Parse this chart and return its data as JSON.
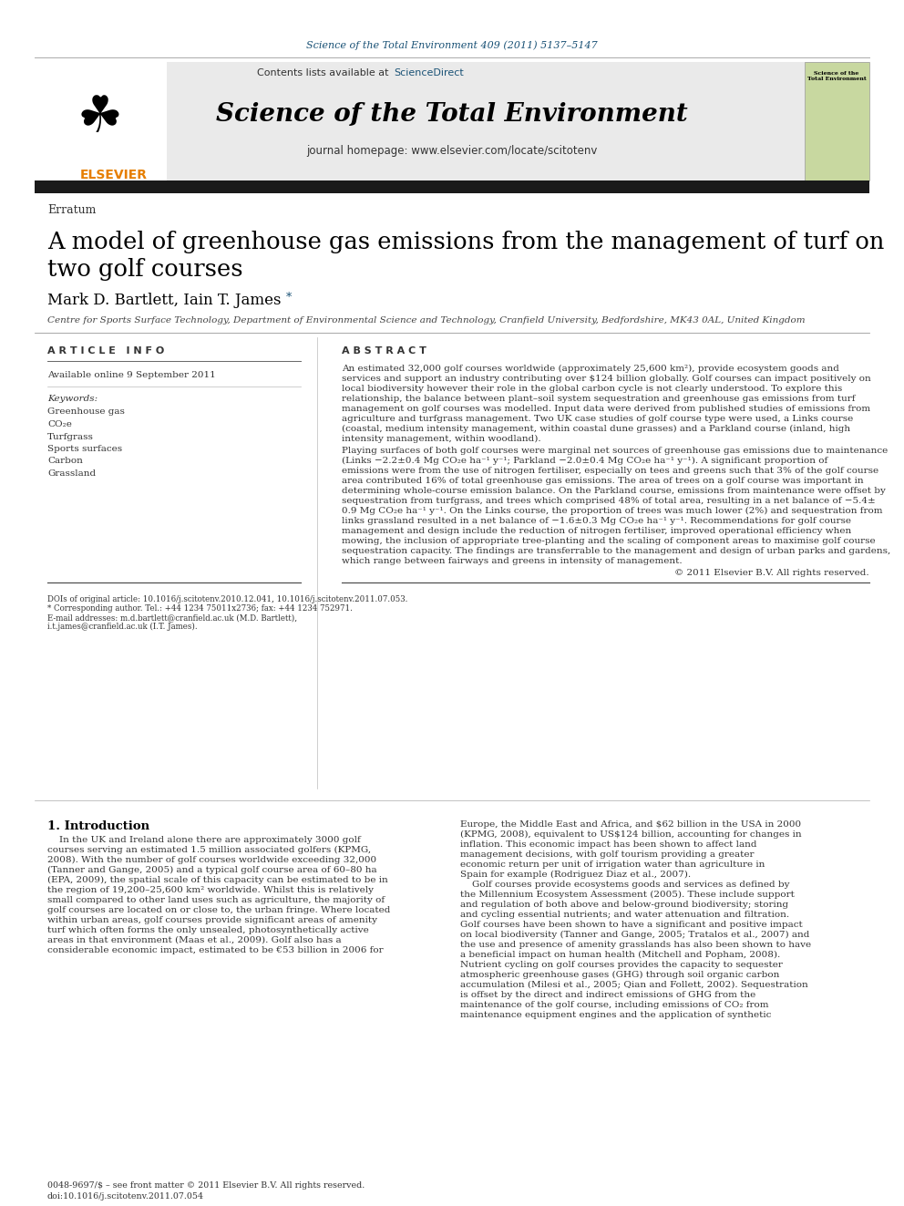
{
  "journal_ref": "Science of the Total Environment 409 (2011) 5137–5147",
  "contents_text": "Contents lists available at",
  "sciencedirect_text": "ScienceDirect",
  "journal_title": "Science of the Total Environment",
  "journal_homepage": "journal homepage: www.elsevier.com/locate/scitotenv",
  "section_label": "Erratum",
  "paper_title_line1": "A model of greenhouse gas emissions from the management of turf on",
  "paper_title_line2": "two golf courses",
  "authors": "Mark D. Bartlett, Iain T. James",
  "affiliation": "Centre for Sports Surface Technology, Department of Environmental Science and Technology, Cranfield University, Bedfordshire, MK43 0AL, United Kingdom",
  "article_info_header": "A R T I C L E   I N F O",
  "abstract_header": "A B S T R A C T",
  "available_online": "Available online 9 September 2011",
  "keywords_header": "Keywords:",
  "keywords": [
    "Greenhouse gas",
    "CO₂e",
    "Turfgrass",
    "Sports surfaces",
    "Carbon",
    "Grassland"
  ],
  "para1_lines": [
    "An estimated 32,000 golf courses worldwide (approximately 25,600 km²), provide ecosystem goods and",
    "services and support an industry contributing over $124 billion globally. Golf courses can impact positively on",
    "local biodiversity however their role in the global carbon cycle is not clearly understood. To explore this",
    "relationship, the balance between plant–soil system sequestration and greenhouse gas emissions from turf",
    "management on golf courses was modelled. Input data were derived from published studies of emissions from",
    "agriculture and turfgrass management. Two UK case studies of golf course type were used, a Links course",
    "(coastal, medium intensity management, within coastal dune grasses) and a Parkland course (inland, high",
    "intensity management, within woodland)."
  ],
  "para2_lines": [
    "Playing surfaces of both golf courses were marginal net sources of greenhouse gas emissions due to maintenance",
    "(Links −2.2±0.4 Mg CO₂e ha⁻¹ y⁻¹; Parkland −2.0±0.4 Mg CO₂e ha⁻¹ y⁻¹). A significant proportion of",
    "emissions were from the use of nitrogen fertiliser, especially on tees and greens such that 3% of the golf course",
    "area contributed 16% of total greenhouse gas emissions. The area of trees on a golf course was important in",
    "determining whole-course emission balance. On the Parkland course, emissions from maintenance were offset by",
    "sequestration from turfgrass, and trees which comprised 48% of total area, resulting in a net balance of −5.4±",
    "0.9 Mg CO₂e ha⁻¹ y⁻¹. On the Links course, the proportion of trees was much lower (2%) and sequestration from",
    "links grassland resulted in a net balance of −1.6±0.3 Mg CO₂e ha⁻¹ y⁻¹. Recommendations for golf course",
    "management and design include the reduction of nitrogen fertiliser, improved operational efficiency when",
    "mowing, the inclusion of appropriate tree-planting and the scaling of component areas to maximise golf course",
    "sequestration capacity. The findings are transferrable to the management and design of urban parks and gardens,",
    "which range between fairways and greens in intensity of management."
  ],
  "copyright": "© 2011 Elsevier B.V. All rights reserved.",
  "intro_header": "1. Introduction",
  "intro1_lines": [
    "    In the UK and Ireland alone there are approximately 3000 golf",
    "courses serving an estimated 1.5 million associated golfers (KPMG,",
    "2008). With the number of golf courses worldwide exceeding 32,000",
    "(Tanner and Gange, 2005) and a typical golf course area of 60–80 ha",
    "(EPA, 2009), the spatial scale of this capacity can be estimated to be in",
    "the region of 19,200–25,600 km² worldwide. Whilst this is relatively",
    "small compared to other land uses such as agriculture, the majority of",
    "golf courses are located on or close to, the urban fringe. Where located",
    "within urban areas, golf courses provide significant areas of amenity",
    "turf which often forms the only unsealed, photosynthetically active",
    "areas in that environment (Maas et al., 2009). Golf also has a",
    "considerable economic impact, estimated to be €53 billion in 2006 for"
  ],
  "intro2_lines": [
    "Europe, the Middle East and Africa, and $62 billion in the USA in 2000",
    "(KPMG, 2008), equivalent to US$124 billion, accounting for changes in",
    "inflation. This economic impact has been shown to affect land",
    "management decisions, with golf tourism providing a greater",
    "economic return per unit of irrigation water than agriculture in",
    "Spain for example (Rodriguez Diaz et al., 2007).",
    "    Golf courses provide ecosystems goods and services as defined by",
    "the Millennium Ecosystem Assessment (2005). These include support",
    "and regulation of both above and below-ground biodiversity; storing",
    "and cycling essential nutrients; and water attenuation and filtration.",
    "Golf courses have been shown to have a significant and positive impact",
    "on local biodiversity (Tanner and Gange, 2005; Tratalos et al., 2007) and",
    "the use and presence of amenity grasslands has also been shown to have",
    "a beneficial impact on human health (Mitchell and Popham, 2008).",
    "Nutrient cycling on golf courses provides the capacity to sequester",
    "atmospheric greenhouse gases (GHG) through soil organic carbon",
    "accumulation (Milesi et al., 2005; Qian and Follett, 2002). Sequestration",
    "is offset by the direct and indirect emissions of GHG from the",
    "maintenance of the golf course, including emissions of CO₂ from",
    "maintenance equipment engines and the application of synthetic"
  ],
  "footnote_doi": "DOIs of original article: 10.1016/j.scitotenv.2010.12.041, 10.1016/j.scitotenv.2011.07.053.",
  "footnote_star": "* Corresponding author. Tel.: +44 1234 75011x2736; fax: +44 1234 752971.",
  "footnote_email": "E-mail addresses: m.d.bartlett@cranfield.ac.uk (M.D. Bartlett),",
  "footnote_email2": "i.t.james@cranfield.ac.uk (I.T. James).",
  "footer_issn": "0048-9697/$ – see front matter © 2011 Elsevier B.V. All rights reserved.",
  "footer_doi": "doi:10.1016/j.scitotenv.2011.07.054",
  "bg_color": "#ffffff",
  "header_bg": "#e8e8e8",
  "link_color": "#1a5276",
  "elsevier_orange": "#e67e00",
  "dark_bar_color": "#1a1a1a"
}
